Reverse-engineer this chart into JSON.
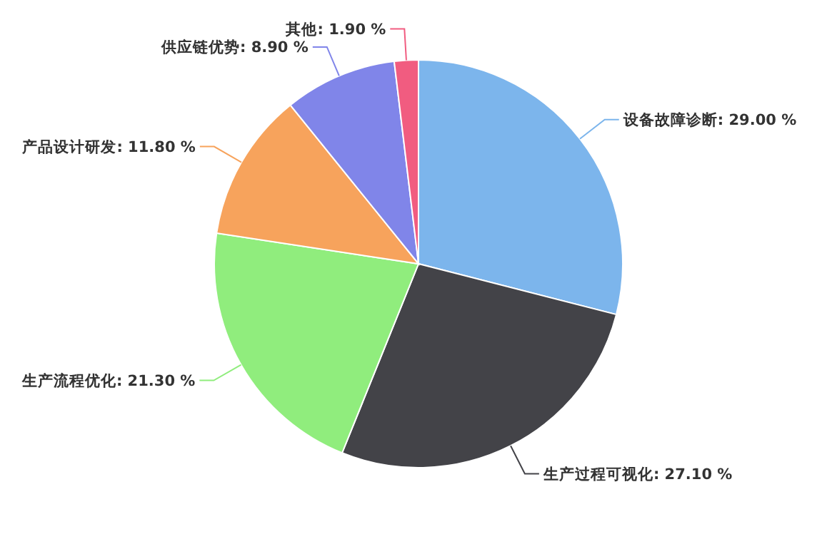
{
  "chart_data": {
    "type": "pie",
    "categories": [
      "设备故障诊断",
      "生产过程可视化",
      "生产流程优化",
      "产品设计研发",
      "供应链优势",
      "其他"
    ],
    "values": [
      29.0,
      27.1,
      21.3,
      11.8,
      8.9,
      1.9
    ],
    "value_labels": [
      "29.00 %",
      "27.10 %",
      "21.30 %",
      "11.80 %",
      "8.90 %",
      "1.90 %"
    ],
    "colors": [
      "#7cb5ec",
      "#434348",
      "#90ed7d",
      "#f7a35c",
      "#8085e9",
      "#f15c80"
    ]
  }
}
